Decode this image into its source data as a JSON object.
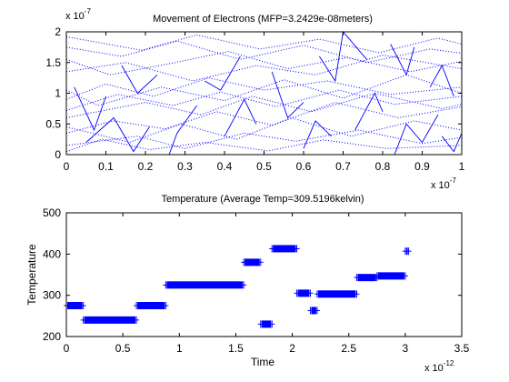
{
  "chart_data": [
    {
      "type": "line",
      "title": "Movement of Electrons (MFP=3.2429e-08meters)",
      "xlabel": "",
      "ylabel": "",
      "xlim": [
        0,
        1
      ],
      "ylim": [
        0,
        2
      ],
      "x_multiplier": "x 10",
      "x_multiplier_exp": "-7",
      "y_multiplier": "x 10",
      "y_multiplier_exp": "-7",
      "x_ticks": [
        "0",
        "0.1",
        "0.2",
        "0.3",
        "0.4",
        "0.5",
        "0.6",
        "0.7",
        "0.8",
        "0.9",
        "1"
      ],
      "y_ticks": [
        "0",
        "0.5",
        "1",
        "1.5",
        "2"
      ],
      "grid": false,
      "series_color": "#0000ff",
      "series": [
        {
          "style": "dotted",
          "values": [
            [
              0.0,
              0.35
            ],
            [
              0.12,
              0.55
            ],
            [
              0.25,
              0.42
            ],
            [
              0.38,
              0.7
            ],
            [
              0.52,
              0.48
            ],
            [
              0.68,
              0.85
            ],
            [
              0.84,
              0.6
            ],
            [
              1.0,
              0.78
            ]
          ]
        },
        {
          "style": "dotted",
          "values": [
            [
              0.0,
              1.35
            ],
            [
              0.15,
              1.5
            ],
            [
              0.32,
              1.2
            ],
            [
              0.48,
              1.45
            ],
            [
              0.63,
              1.3
            ],
            [
              0.8,
              1.62
            ],
            [
              1.0,
              1.4
            ]
          ]
        },
        {
          "style": "dotted",
          "values": [
            [
              0.0,
              0.9
            ],
            [
              0.1,
              1.15
            ],
            [
              0.22,
              0.95
            ],
            [
              0.36,
              1.25
            ],
            [
              0.5,
              1.05
            ],
            [
              0.66,
              1.2
            ],
            [
              0.82,
              0.98
            ],
            [
              1.0,
              1.1
            ]
          ]
        },
        {
          "style": "dotted",
          "values": [
            [
              0.0,
              0.15
            ],
            [
              0.18,
              0.3
            ],
            [
              0.3,
              0.1
            ],
            [
              0.45,
              0.35
            ],
            [
              0.58,
              0.22
            ],
            [
              0.74,
              0.4
            ],
            [
              0.9,
              0.18
            ],
            [
              1.0,
              0.28
            ]
          ]
        },
        {
          "style": "dotted",
          "values": [
            [
              0.0,
              1.75
            ],
            [
              0.14,
              1.6
            ],
            [
              0.28,
              1.85
            ],
            [
              0.44,
              1.55
            ],
            [
              0.6,
              1.78
            ],
            [
              0.76,
              1.5
            ],
            [
              0.92,
              1.72
            ],
            [
              1.0,
              1.65
            ]
          ]
        },
        {
          "style": "dotted",
          "values": [
            [
              0.0,
              0.6
            ],
            [
              0.2,
              0.85
            ],
            [
              0.34,
              0.65
            ],
            [
              0.47,
              0.95
            ],
            [
              0.62,
              0.7
            ],
            [
              0.78,
              1.0
            ],
            [
              0.95,
              0.75
            ],
            [
              1.0,
              0.82
            ]
          ]
        },
        {
          "style": "dotted",
          "values": [
            [
              0.0,
              1.05
            ],
            [
              0.08,
              0.8
            ],
            [
              0.24,
              1.1
            ],
            [
              0.4,
              0.88
            ],
            [
              0.55,
              1.22
            ],
            [
              0.7,
              0.92
            ],
            [
              0.86,
              1.3
            ],
            [
              1.0,
              1.0
            ]
          ]
        },
        {
          "style": "dotted",
          "values": [
            [
              0.0,
              0.45
            ],
            [
              0.16,
              0.2
            ],
            [
              0.29,
              0.5
            ],
            [
              0.43,
              0.25
            ],
            [
              0.57,
              0.6
            ],
            [
              0.72,
              0.3
            ],
            [
              0.88,
              0.55
            ],
            [
              1.0,
              0.4
            ]
          ]
        },
        {
          "style": "dotted",
          "values": [
            [
              0.0,
              1.55
            ],
            [
              0.11,
              1.3
            ],
            [
              0.26,
              1.48
            ],
            [
              0.41,
              1.68
            ],
            [
              0.56,
              1.4
            ],
            [
              0.71,
              1.58
            ],
            [
              0.87,
              1.35
            ],
            [
              1.0,
              1.52
            ]
          ]
        },
        {
          "style": "dotted",
          "values": [
            [
              0.0,
              0.72
            ],
            [
              0.13,
              0.98
            ],
            [
              0.27,
              0.8
            ],
            [
              0.39,
              1.02
            ],
            [
              0.53,
              0.78
            ],
            [
              0.69,
              1.05
            ],
            [
              0.83,
              0.82
            ],
            [
              1.0,
              0.95
            ]
          ]
        },
        {
          "style": "dotted",
          "values": [
            [
              0.0,
              1.92
            ],
            [
              0.19,
              1.7
            ],
            [
              0.33,
              1.95
            ],
            [
              0.49,
              1.72
            ],
            [
              0.64,
              1.88
            ],
            [
              0.79,
              1.66
            ],
            [
              0.94,
              1.9
            ],
            [
              1.0,
              1.8
            ]
          ]
        },
        {
          "style": "dotted",
          "values": [
            [
              0.0,
              0.05
            ],
            [
              0.09,
              0.25
            ],
            [
              0.21,
              0.08
            ],
            [
              0.35,
              0.2
            ],
            [
              0.51,
              0.06
            ],
            [
              0.65,
              0.24
            ],
            [
              0.81,
              0.1
            ],
            [
              1.0,
              0.15
            ]
          ]
        },
        {
          "style": "solid",
          "values": [
            [
              0.02,
              1.1
            ],
            [
              0.07,
              0.4
            ],
            [
              0.1,
              0.95
            ]
          ]
        },
        {
          "style": "solid",
          "values": [
            [
              0.05,
              0.2
            ],
            [
              0.12,
              0.6
            ],
            [
              0.17,
              0.05
            ],
            [
              0.21,
              0.45
            ]
          ]
        },
        {
          "style": "solid",
          "values": [
            [
              0.14,
              1.45
            ],
            [
              0.18,
              1.0
            ],
            [
              0.23,
              1.3
            ]
          ]
        },
        {
          "style": "solid",
          "values": [
            [
              0.26,
              0.0
            ],
            [
              0.28,
              0.35
            ],
            [
              0.33,
              0.8
            ]
          ]
        },
        {
          "style": "solid",
          "values": [
            [
              0.35,
              1.2
            ],
            [
              0.39,
              1.05
            ],
            [
              0.44,
              1.6
            ]
          ]
        },
        {
          "style": "solid",
          "values": [
            [
              0.4,
              0.3
            ],
            [
              0.45,
              0.9
            ],
            [
              0.48,
              0.5
            ]
          ]
        },
        {
          "style": "solid",
          "values": [
            [
              0.52,
              1.35
            ],
            [
              0.56,
              0.6
            ],
            [
              0.6,
              0.85
            ]
          ]
        },
        {
          "style": "solid",
          "values": [
            [
              0.6,
              0.1
            ],
            [
              0.63,
              0.55
            ],
            [
              0.67,
              0.3
            ]
          ]
        },
        {
          "style": "solid",
          "values": [
            [
              0.64,
              1.6
            ],
            [
              0.68,
              1.2
            ],
            [
              0.7,
              2.0
            ],
            [
              0.76,
              1.55
            ]
          ]
        },
        {
          "style": "solid",
          "values": [
            [
              0.73,
              0.4
            ],
            [
              0.78,
              1.0
            ],
            [
              0.8,
              0.7
            ]
          ]
        },
        {
          "style": "solid",
          "values": [
            [
              0.82,
              1.8
            ],
            [
              0.86,
              1.3
            ],
            [
              0.88,
              1.75
            ]
          ]
        },
        {
          "style": "solid",
          "values": [
            [
              0.83,
              0.0
            ],
            [
              0.86,
              0.5
            ],
            [
              0.9,
              0.2
            ],
            [
              0.94,
              0.65
            ]
          ]
        },
        {
          "style": "solid",
          "values": [
            [
              0.92,
              1.1
            ],
            [
              0.95,
              1.45
            ],
            [
              0.98,
              0.95
            ]
          ]
        },
        {
          "style": "solid",
          "values": [
            [
              0.95,
              0.3
            ],
            [
              0.98,
              0.05
            ],
            [
              1.0,
              0.35
            ]
          ]
        }
      ]
    },
    {
      "type": "line",
      "title": "Temperature (Average Temp=309.5196kelvin)",
      "xlabel": "Time",
      "ylabel": "Temperature",
      "xlim": [
        0,
        3.5
      ],
      "ylim": [
        200,
        500
      ],
      "x_multiplier": "x 10",
      "x_multiplier_exp": "-12",
      "x_ticks": [
        "0",
        "0.5",
        "1",
        "1.5",
        "2",
        "2.5",
        "3",
        "3.5"
      ],
      "y_ticks": [
        "200",
        "300",
        "400",
        "500"
      ],
      "grid": false,
      "series_color": "#0000ff",
      "segments": [
        {
          "x_start": 0.0,
          "x_end": 0.15,
          "value": 275
        },
        {
          "x_start": 0.15,
          "x_end": 0.62,
          "value": 240
        },
        {
          "x_start": 0.62,
          "x_end": 0.88,
          "value": 275
        },
        {
          "x_start": 0.88,
          "x_end": 1.57,
          "value": 325
        },
        {
          "x_start": 1.57,
          "x_end": 1.72,
          "value": 380
        },
        {
          "x_start": 1.72,
          "x_end": 1.82,
          "value": 230
        },
        {
          "x_start": 1.82,
          "x_end": 2.04,
          "value": 413
        },
        {
          "x_start": 2.04,
          "x_end": 2.16,
          "value": 305
        },
        {
          "x_start": 2.16,
          "x_end": 2.22,
          "value": 263
        },
        {
          "x_start": 2.22,
          "x_end": 2.57,
          "value": 303
        },
        {
          "x_start": 2.57,
          "x_end": 2.75,
          "value": 343
        },
        {
          "x_start": 2.75,
          "x_end": 3.0,
          "value": 347
        },
        {
          "x_start": 3.0,
          "x_end": 3.03,
          "value": 407
        }
      ]
    }
  ]
}
